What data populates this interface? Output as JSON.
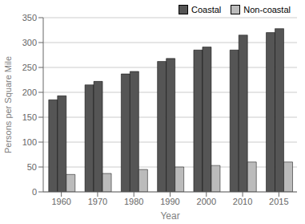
{
  "chart_data": {
    "type": "bar",
    "categories": [
      "1960",
      "1970",
      "1980",
      "1990",
      "2000",
      "2010",
      "2015"
    ],
    "series": [
      {
        "name": "Coastal",
        "color": "#555555",
        "values": [
          185,
          215,
          237,
          262,
          285,
          285,
          320
        ]
      },
      {
        "name": "Coastal",
        "color": "#555555",
        "values": [
          193,
          222,
          242,
          268,
          291,
          315,
          328
        ]
      },
      {
        "name": "Non-coastal",
        "color": "#bbbbbb",
        "values": [
          35,
          37,
          45,
          50,
          53,
          60,
          60
        ]
      }
    ],
    "x_label": "Year",
    "y_label": "Persons per Square Mile",
    "ylim": [
      0,
      350
    ],
    "yticks": [
      0,
      50,
      100,
      150,
      200,
      250,
      300,
      350
    ],
    "grid": true,
    "legend": "upper right"
  }
}
